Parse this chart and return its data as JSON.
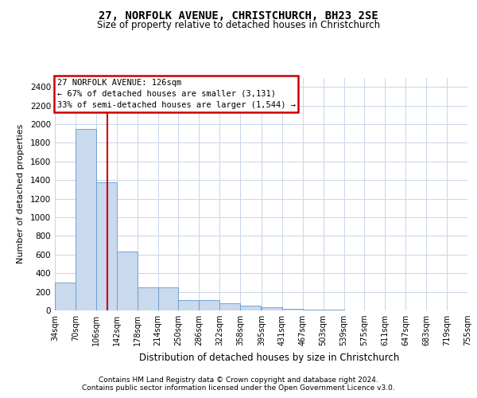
{
  "title": "27, NORFOLK AVENUE, CHRISTCHURCH, BH23 2SE",
  "subtitle": "Size of property relative to detached houses in Christchurch",
  "xlabel": "Distribution of detached houses by size in Christchurch",
  "ylabel": "Number of detached properties",
  "footer_line1": "Contains HM Land Registry data © Crown copyright and database right 2024.",
  "footer_line2": "Contains public sector information licensed under the Open Government Licence v3.0.",
  "annotation_title": "27 NORFOLK AVENUE: 126sqm",
  "annotation_line2": "← 67% of detached houses are smaller (3,131)",
  "annotation_line3": "33% of semi-detached houses are larger (1,544) →",
  "property_line_x": 126,
  "bar_color": "#c9d9ee",
  "bar_edge_color": "#6699cc",
  "property_line_color": "#cc0000",
  "annotation_box_color": "#cc0000",
  "background_color": "#ffffff",
  "grid_color": "#c8d4e8",
  "bin_edges": [
    34,
    70,
    106,
    142,
    178,
    214,
    250,
    286,
    322,
    358,
    395,
    431,
    467,
    503,
    539,
    575,
    611,
    647,
    683,
    719,
    755
  ],
  "bar_heights": [
    300,
    1950,
    1380,
    630,
    250,
    250,
    115,
    115,
    80,
    55,
    30,
    20,
    10,
    5,
    3,
    2,
    1,
    0,
    0,
    0
  ],
  "ylim": [
    0,
    2500
  ],
  "yticks": [
    0,
    200,
    400,
    600,
    800,
    1000,
    1200,
    1400,
    1600,
    1800,
    2000,
    2200,
    2400
  ]
}
